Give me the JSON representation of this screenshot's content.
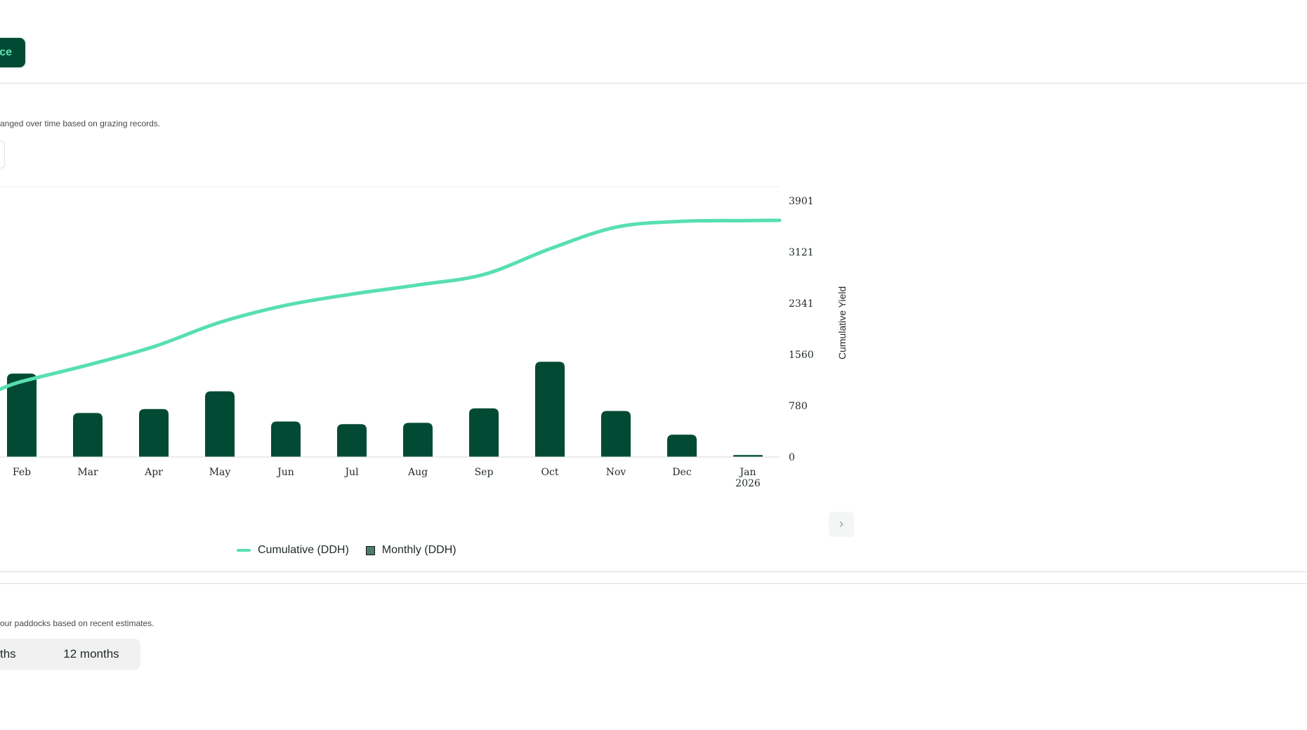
{
  "header": {
    "action_button_label": "ce"
  },
  "yield_section": {
    "description": "anged over time based on grazing records.",
    "next_icon": "chevron-right-icon",
    "legend": [
      {
        "label": "Cumulative (DDH)",
        "color": "#57dfb0"
      },
      {
        "label": "Monthly (DDH)",
        "color": "#024a34"
      }
    ]
  },
  "forecast_section": {
    "description": "our paddocks based on recent estimates.",
    "periods": [
      "ths",
      "12 months"
    ]
  },
  "chart_data": {
    "type": "bar",
    "categories": [
      "Feb",
      "Mar",
      "Apr",
      "May",
      "Jun",
      "Jul",
      "Aug",
      "Sep",
      "Oct",
      "Nov",
      "Dec",
      "Jan\n2026"
    ],
    "series": [
      {
        "name": "Monthly (DDH)",
        "type": "bar",
        "color": "#024a34",
        "values": [
          1270,
          670,
          730,
          1000,
          540,
          500,
          520,
          740,
          1450,
          700,
          340,
          30
        ]
      },
      {
        "name": "Cumulative (DDH)",
        "type": "line",
        "color": "#57dfb0",
        "values": [
          1150,
          1400,
          1680,
          2050,
          2310,
          2480,
          2620,
          2780,
          3170,
          3500,
          3590,
          3600
        ]
      }
    ],
    "cumulative_line_start": {
      "y": 1030
    },
    "cumulative_line_end": {
      "y": 3605
    },
    "y_ticks": [
      0,
      780,
      1560,
      2341,
      3121,
      3901
    ],
    "ylabel_right": "Cumulative Yield",
    "ylim": [
      0,
      4170
    ],
    "grid": false,
    "legend_position": "bottom"
  }
}
